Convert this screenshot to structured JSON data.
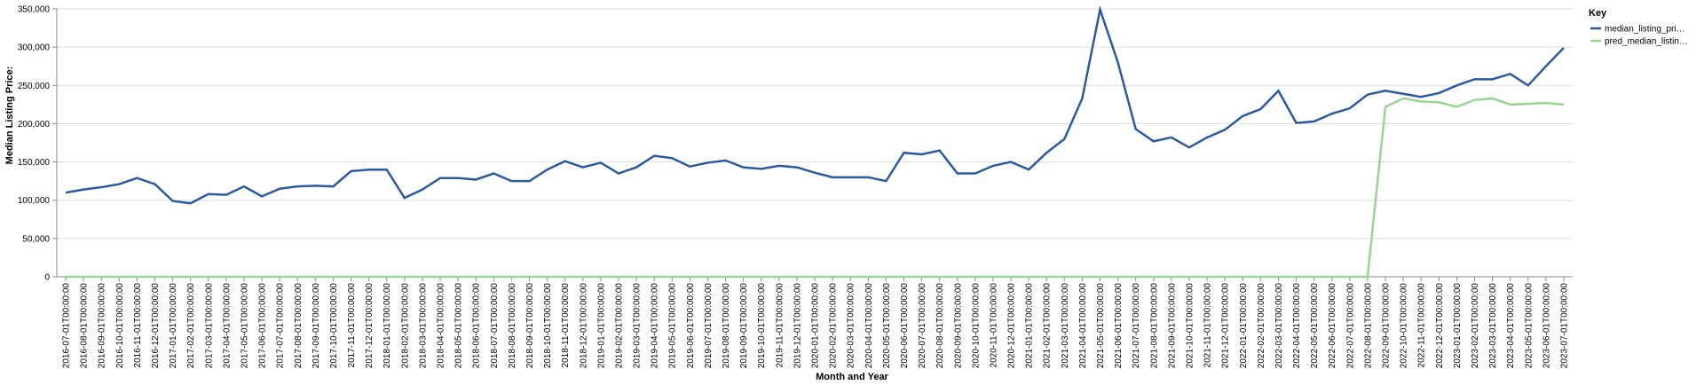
{
  "chart_data": {
    "type": "line",
    "x_label": "Month and Year",
    "y_label": "Median Listing Price:",
    "legend_title": "Key",
    "legend_position": "right",
    "grid": true,
    "categories": [
      "2016-07-01T00:00:00",
      "2016-08-01T00:00:00",
      "2016-09-01T00:00:00",
      "2016-10-01T00:00:00",
      "2016-11-01T00:00:00",
      "2016-12-01T00:00:00",
      "2017-01-01T00:00:00",
      "2017-02-01T00:00:00",
      "2017-03-01T00:00:00",
      "2017-04-01T00:00:00",
      "2017-05-01T00:00:00",
      "2017-06-01T00:00:00",
      "2017-07-01T00:00:00",
      "2017-08-01T00:00:00",
      "2017-09-01T00:00:00",
      "2017-10-01T00:00:00",
      "2017-11-01T00:00:00",
      "2017-12-01T00:00:00",
      "2018-01-01T00:00:00",
      "2018-02-01T00:00:00",
      "2018-03-01T00:00:00",
      "2018-04-01T00:00:00",
      "2018-05-01T00:00:00",
      "2018-06-01T00:00:00",
      "2018-07-01T00:00:00",
      "2018-08-01T00:00:00",
      "2018-09-01T00:00:00",
      "2018-10-01T00:00:00",
      "2018-11-01T00:00:00",
      "2018-12-01T00:00:00",
      "2019-01-01T00:00:00",
      "2019-02-01T00:00:00",
      "2019-03-01T00:00:00",
      "2019-04-01T00:00:00",
      "2019-05-01T00:00:00",
      "2019-06-01T00:00:00",
      "2019-07-01T00:00:00",
      "2019-08-01T00:00:00",
      "2019-09-01T00:00:00",
      "2019-10-01T00:00:00",
      "2019-11-01T00:00:00",
      "2019-12-01T00:00:00",
      "2020-01-01T00:00:00",
      "2020-02-01T00:00:00",
      "2020-03-01T00:00:00",
      "2020-04-01T00:00:00",
      "2020-05-01T00:00:00",
      "2020-06-01T00:00:00",
      "2020-07-01T00:00:00",
      "2020-08-01T00:00:00",
      "2020-09-01T00:00:00",
      "2020-10-01T00:00:00",
      "2020-11-01T00:00:00",
      "2020-12-01T00:00:00",
      "2021-01-01T00:00:00",
      "2021-02-01T00:00:00",
      "2021-03-01T00:00:00",
      "2021-04-01T00:00:00",
      "2021-05-01T00:00:00",
      "2021-06-01T00:00:00",
      "2021-07-01T00:00:00",
      "2021-08-01T00:00:00",
      "2021-09-01T00:00:00",
      "2021-10-01T00:00:00",
      "2021-11-01T00:00:00",
      "2021-12-01T00:00:00",
      "2022-01-01T00:00:00",
      "2022-02-01T00:00:00",
      "2022-03-01T00:00:00",
      "2022-04-01T00:00:00",
      "2022-05-01T00:00:00",
      "2022-06-01T00:00:00",
      "2022-07-01T00:00:00",
      "2022-08-01T00:00:00",
      "2022-09-01T00:00:00",
      "2022-10-01T00:00:00",
      "2022-11-01T00:00:00",
      "2022-12-01T00:00:00",
      "2023-01-01T00:00:00",
      "2023-02-01T00:00:00",
      "2023-03-01T00:00:00",
      "2023-04-01T00:00:00",
      "2023-05-01T00:00:00",
      "2023-06-01T00:00:00",
      "2023-07-01T00:00:00"
    ],
    "series": [
      {
        "name": "median_listing_pri…",
        "color": "#2c5aa0",
        "values": [
          110000,
          114000,
          117000,
          121000,
          129000,
          121000,
          99000,
          96000,
          108000,
          107000,
          118000,
          105000,
          115000,
          118000,
          119000,
          118000,
          138000,
          140000,
          140000,
          103000,
          114000,
          129000,
          129000,
          127000,
          135000,
          125000,
          125000,
          140000,
          151000,
          143000,
          149000,
          135000,
          143000,
          158000,
          155000,
          144000,
          149000,
          152000,
          143000,
          141000,
          145000,
          143000,
          136000,
          130000,
          130000,
          130000,
          125000,
          162000,
          160000,
          165000,
          135000,
          135000,
          145000,
          150000,
          140000,
          162000,
          180000,
          233000,
          349000,
          280000,
          193000,
          177000,
          182000,
          169000,
          182000,
          192000,
          210000,
          219000,
          243000,
          201000,
          203000,
          213000,
          220000,
          238000,
          243000,
          239000,
          235000,
          240000,
          250000,
          258000,
          258000,
          265000,
          250000,
          275000,
          299000
        ]
      },
      {
        "name": "pred_median_listin…",
        "color": "#98d593",
        "values": [
          0,
          0,
          0,
          0,
          0,
          0,
          0,
          0,
          0,
          0,
          0,
          0,
          0,
          0,
          0,
          0,
          0,
          0,
          0,
          0,
          0,
          0,
          0,
          0,
          0,
          0,
          0,
          0,
          0,
          0,
          0,
          0,
          0,
          0,
          0,
          0,
          0,
          0,
          0,
          0,
          0,
          0,
          0,
          0,
          0,
          0,
          0,
          0,
          0,
          0,
          0,
          0,
          0,
          0,
          0,
          0,
          0,
          0,
          0,
          0,
          0,
          0,
          0,
          0,
          0,
          0,
          0,
          0,
          0,
          0,
          0,
          0,
          0,
          0,
          222000,
          233000,
          229000,
          228000,
          222000,
          231000,
          233000,
          225000,
          226000,
          227000,
          225000
        ]
      }
    ],
    "ylim": [
      0,
      350000
    ],
    "yticks": [
      0,
      {
        "value": 50000,
        "label": "50,000"
      },
      {
        "value": 100000,
        "label": "100,000"
      },
      {
        "value": 150000,
        "label": "150,000"
      },
      {
        "value": 200000,
        "label": "200,000"
      },
      {
        "value": 250000,
        "label": "250,000"
      },
      {
        "value": 300000,
        "label": "300,000"
      },
      {
        "value": 350000,
        "label": "350,000"
      }
    ]
  }
}
